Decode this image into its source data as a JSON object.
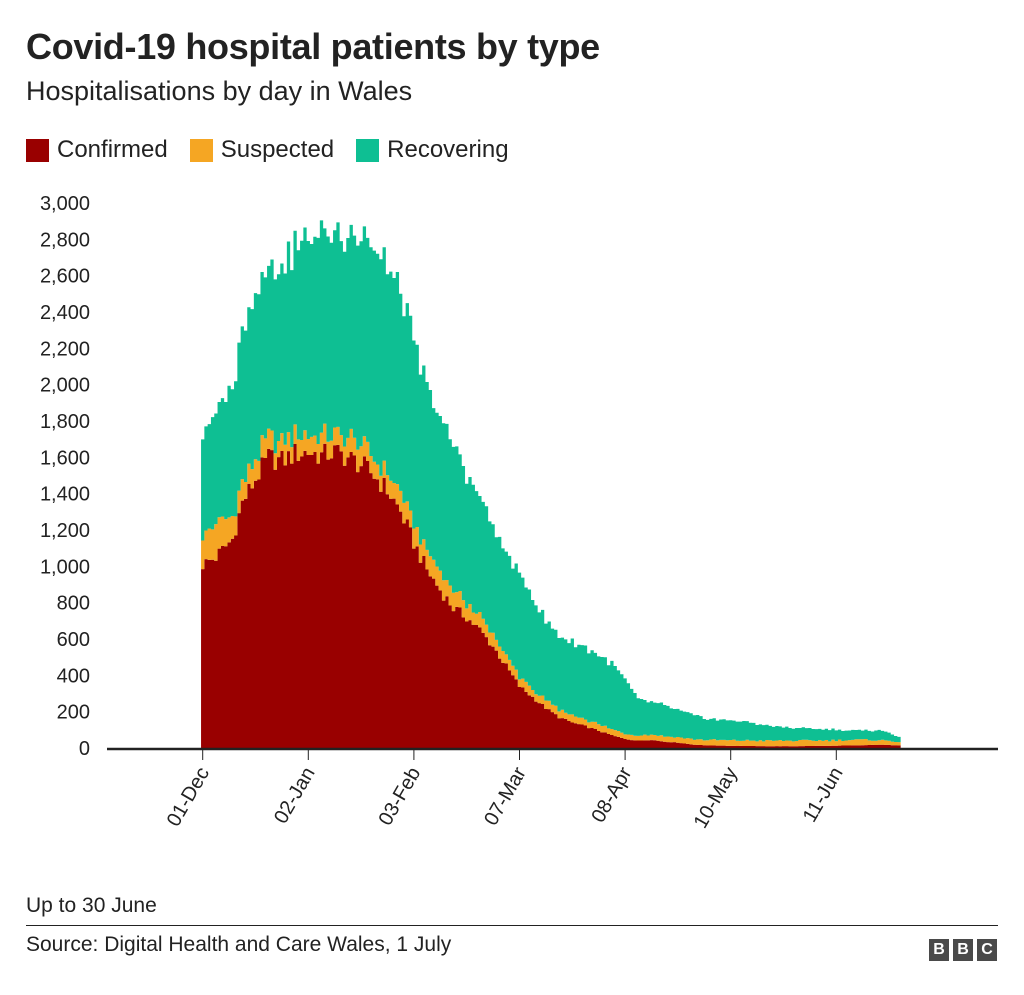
{
  "header": {
    "title": "Covid-19 hospital patients by type",
    "subtitle": "Hospitalisations by day in Wales"
  },
  "legend": {
    "items": [
      {
        "label": "Confirmed",
        "color": "#990000"
      },
      {
        "label": "Suspected",
        "color": "#f5a623"
      },
      {
        "label": "Recovering",
        "color": "#0ebf93"
      }
    ]
  },
  "footer": {
    "note": "Up to 30 June",
    "source": "Source: Digital Health and Care Wales, 1 July",
    "logo_letters": [
      "B",
      "B",
      "C"
    ]
  },
  "chart_data": {
    "type": "area",
    "stacked": true,
    "title": "Covid-19 hospital patients by type",
    "subtitle": "Hospitalisations by day in Wales",
    "xlabel": "",
    "ylabel": "",
    "ylim": [
      0,
      3000
    ],
    "y_ticks": [
      0,
      200,
      400,
      600,
      800,
      1000,
      1200,
      1400,
      1600,
      1800,
      2000,
      2200,
      2400,
      2600,
      2800,
      3000
    ],
    "y_tick_labels": [
      "0",
      "200",
      "400",
      "600",
      "800",
      "1,000",
      "1,200",
      "1,400",
      "1,600",
      "1,800",
      "2,000",
      "2,200",
      "2,400",
      "2,600",
      "2,800",
      "3,000"
    ],
    "x_range_days": [
      -29,
      241
    ],
    "x_ticks": [
      {
        "label": "01-Dec",
        "day": 0
      },
      {
        "label": "02-Jan",
        "day": 32
      },
      {
        "label": "03-Feb",
        "day": 64
      },
      {
        "label": "07-Mar",
        "day": 96
      },
      {
        "label": "08-Apr",
        "day": 128
      },
      {
        "label": "10-May",
        "day": 160
      },
      {
        "label": "11-Jun",
        "day": 192
      }
    ],
    "data_start_day": 0,
    "data_end_day": 211,
    "grid": false,
    "legend_position": "top-left",
    "series": [
      {
        "name": "Confirmed",
        "color": "#990000",
        "keypoints": [
          [
            0,
            1010
          ],
          [
            4,
            1050
          ],
          [
            9,
            1150
          ],
          [
            12,
            1350
          ],
          [
            16,
            1480
          ],
          [
            20,
            1600
          ],
          [
            24,
            1580
          ],
          [
            28,
            1620
          ],
          [
            32,
            1630
          ],
          [
            36,
            1610
          ],
          [
            40,
            1630
          ],
          [
            44,
            1600
          ],
          [
            48,
            1560
          ],
          [
            52,
            1500
          ],
          [
            56,
            1420
          ],
          [
            60,
            1300
          ],
          [
            64,
            1130
          ],
          [
            68,
            980
          ],
          [
            72,
            870
          ],
          [
            76,
            770
          ],
          [
            80,
            720
          ],
          [
            84,
            650
          ],
          [
            88,
            560
          ],
          [
            92,
            450
          ],
          [
            96,
            340
          ],
          [
            100,
            280
          ],
          [
            104,
            220
          ],
          [
            108,
            170
          ],
          [
            112,
            140
          ],
          [
            116,
            120
          ],
          [
            120,
            95
          ],
          [
            124,
            70
          ],
          [
            128,
            50
          ],
          [
            132,
            40
          ],
          [
            136,
            45
          ],
          [
            140,
            35
          ],
          [
            144,
            30
          ],
          [
            148,
            20
          ],
          [
            152,
            15
          ],
          [
            160,
            12
          ],
          [
            170,
            10
          ],
          [
            180,
            10
          ],
          [
            190,
            12
          ],
          [
            200,
            15
          ],
          [
            205,
            18
          ],
          [
            211,
            15
          ]
        ]
      },
      {
        "name": "Suspected",
        "color": "#f5a623",
        "keypoints": [
          [
            0,
            190
          ],
          [
            5,
            170
          ],
          [
            10,
            110
          ],
          [
            15,
            100
          ],
          [
            20,
            110
          ],
          [
            25,
            100
          ],
          [
            30,
            110
          ],
          [
            35,
            100
          ],
          [
            40,
            100
          ],
          [
            45,
            110
          ],
          [
            50,
            100
          ],
          [
            55,
            90
          ],
          [
            60,
            100
          ],
          [
            64,
            100
          ],
          [
            70,
            100
          ],
          [
            76,
            95
          ],
          [
            80,
            80
          ],
          [
            88,
            65
          ],
          [
            96,
            50
          ],
          [
            104,
            40
          ],
          [
            112,
            40
          ],
          [
            120,
            35
          ],
          [
            128,
            30
          ],
          [
            136,
            30
          ],
          [
            144,
            30
          ],
          [
            152,
            30
          ],
          [
            160,
            30
          ],
          [
            170,
            30
          ],
          [
            180,
            30
          ],
          [
            190,
            30
          ],
          [
            200,
            30
          ],
          [
            211,
            20
          ]
        ]
      },
      {
        "name": "Recovering",
        "color": "#0ebf93",
        "keypoints": [
          [
            0,
            570
          ],
          [
            5,
            610
          ],
          [
            10,
            760
          ],
          [
            14,
            900
          ],
          [
            18,
            930
          ],
          [
            22,
            930
          ],
          [
            26,
            1000
          ],
          [
            30,
            1070
          ],
          [
            33,
            1100
          ],
          [
            36,
            1120
          ],
          [
            40,
            1100
          ],
          [
            44,
            1130
          ],
          [
            48,
            1140
          ],
          [
            52,
            1150
          ],
          [
            56,
            1150
          ],
          [
            60,
            1100
          ],
          [
            64,
            1000
          ],
          [
            68,
            900
          ],
          [
            72,
            850
          ],
          [
            76,
            800
          ],
          [
            80,
            720
          ],
          [
            84,
            650
          ],
          [
            88,
            600
          ],
          [
            92,
            560
          ],
          [
            96,
            560
          ],
          [
            100,
            520
          ],
          [
            104,
            430
          ],
          [
            108,
            410
          ],
          [
            112,
            400
          ],
          [
            116,
            400
          ],
          [
            120,
            380
          ],
          [
            124,
            360
          ],
          [
            128,
            300
          ],
          [
            132,
            200
          ],
          [
            136,
            180
          ],
          [
            140,
            170
          ],
          [
            144,
            150
          ],
          [
            148,
            135
          ],
          [
            152,
            120
          ],
          [
            156,
            110
          ],
          [
            160,
            110
          ],
          [
            166,
            100
          ],
          [
            172,
            80
          ],
          [
            180,
            70
          ],
          [
            190,
            60
          ],
          [
            200,
            50
          ],
          [
            205,
            55
          ],
          [
            211,
            30
          ]
        ]
      }
    ]
  }
}
